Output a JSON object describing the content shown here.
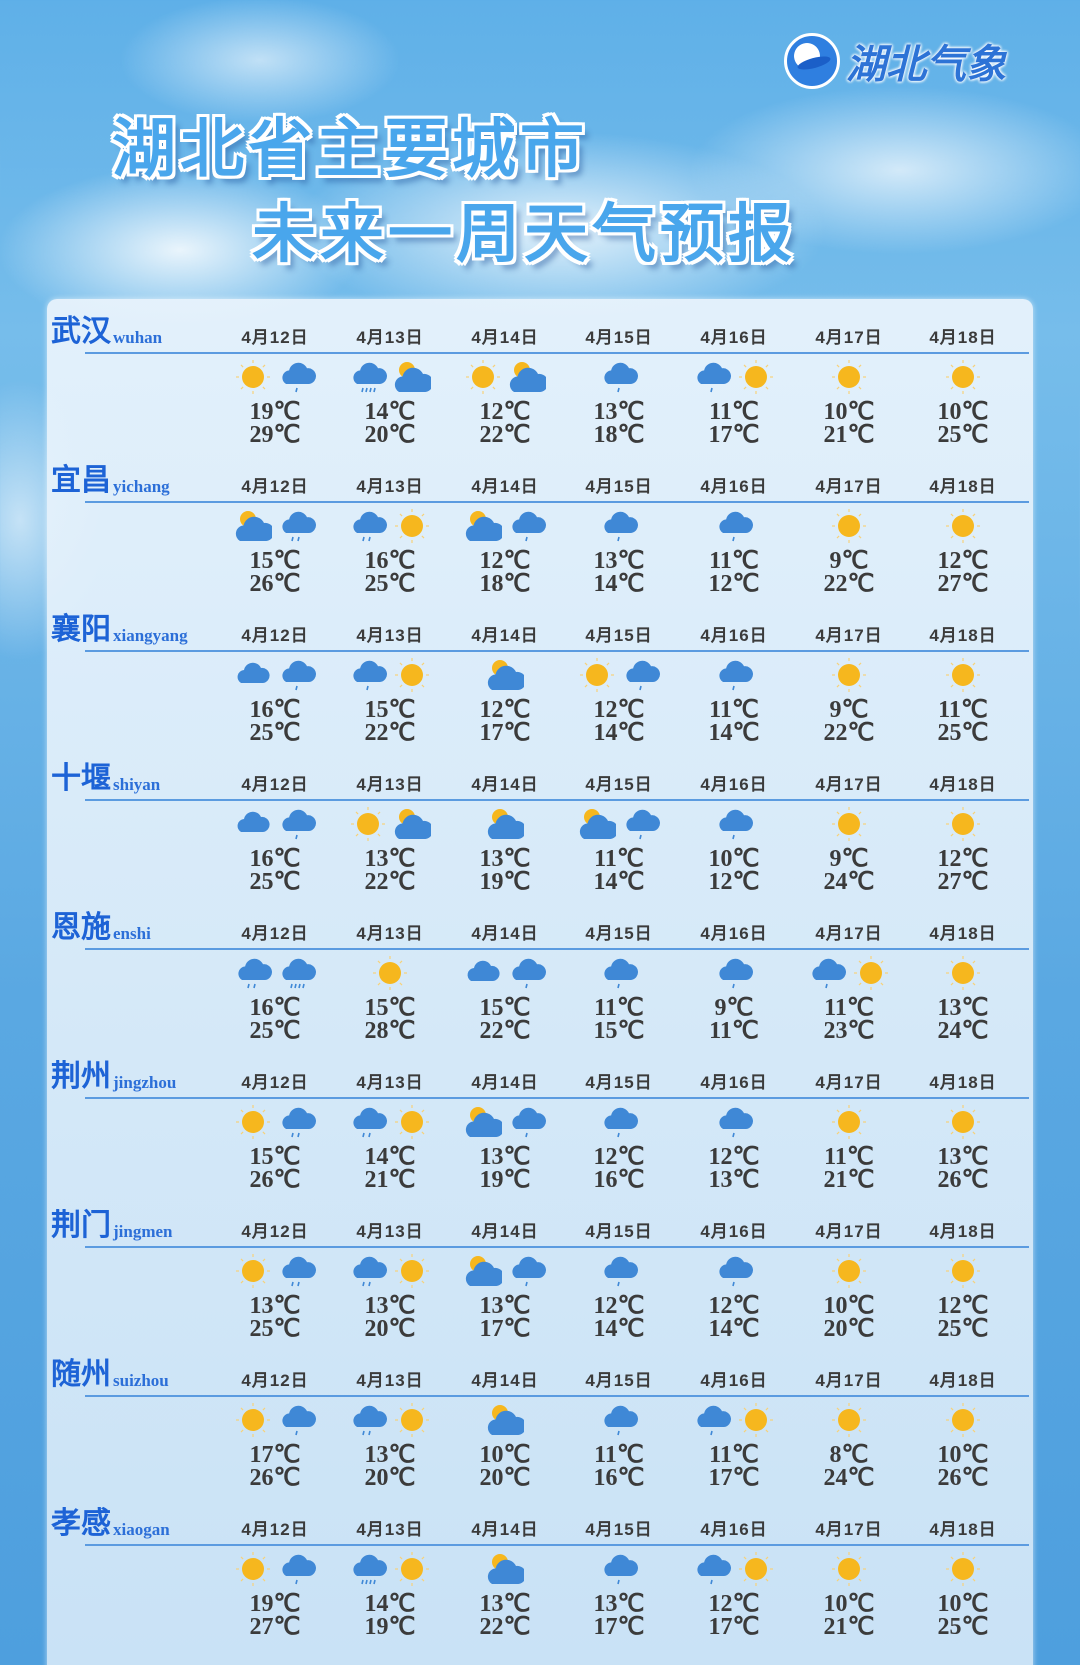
{
  "logo": {
    "text": "湖北气象"
  },
  "title": {
    "line1": "湖北省主要城市",
    "line2": "未来一周天气预报"
  },
  "dates": [
    "4月12日",
    "4月13日",
    "4月14日",
    "4月15日",
    "4月16日",
    "4月17日",
    "4月18日"
  ],
  "colors": {
    "city_name": "#1d63d6",
    "title": "#49a6ec",
    "sun": "#f6b71e",
    "cloud": "#3f88d6",
    "text": "#3b3b3b"
  },
  "cities": [
    {
      "name": "武汉",
      "pinyin": "wuhan",
      "days": [
        {
          "icons": [
            "sunny",
            "light-rain"
          ],
          "low": "19℃",
          "high": "29℃"
        },
        {
          "icons": [
            "heavy-rain",
            "partly-cloudy"
          ],
          "low": "14℃",
          "high": "20℃"
        },
        {
          "icons": [
            "sunny",
            "partly-cloudy"
          ],
          "low": "12℃",
          "high": "22℃"
        },
        {
          "icons": [
            "light-rain"
          ],
          "low": "13℃",
          "high": "18℃"
        },
        {
          "icons": [
            "light-rain",
            "sunny"
          ],
          "low": "11℃",
          "high": "17℃"
        },
        {
          "icons": [
            "sunny"
          ],
          "low": "10℃",
          "high": "21℃"
        },
        {
          "icons": [
            "sunny"
          ],
          "low": "10℃",
          "high": "25℃"
        }
      ]
    },
    {
      "name": "宜昌",
      "pinyin": "yichang",
      "days": [
        {
          "icons": [
            "partly-cloudy",
            "moderate-rain"
          ],
          "low": "15℃",
          "high": "26℃"
        },
        {
          "icons": [
            "moderate-rain",
            "sunny"
          ],
          "low": "16℃",
          "high": "25℃"
        },
        {
          "icons": [
            "partly-cloudy",
            "light-rain"
          ],
          "low": "12℃",
          "high": "18℃"
        },
        {
          "icons": [
            "light-rain"
          ],
          "low": "13℃",
          "high": "14℃"
        },
        {
          "icons": [
            "light-rain"
          ],
          "low": "11℃",
          "high": "12℃"
        },
        {
          "icons": [
            "sunny"
          ],
          "low": "9℃",
          "high": "22℃"
        },
        {
          "icons": [
            "sunny"
          ],
          "low": "12℃",
          "high": "27℃"
        }
      ]
    },
    {
      "name": "襄阳",
      "pinyin": "xiangyang",
      "days": [
        {
          "icons": [
            "cloudy",
            "light-rain"
          ],
          "low": "16℃",
          "high": "25℃"
        },
        {
          "icons": [
            "light-rain",
            "sunny"
          ],
          "low": "15℃",
          "high": "22℃"
        },
        {
          "icons": [
            "partly-cloudy"
          ],
          "low": "12℃",
          "high": "17℃"
        },
        {
          "icons": [
            "sunny",
            "light-rain"
          ],
          "low": "12℃",
          "high": "14℃"
        },
        {
          "icons": [
            "light-rain"
          ],
          "low": "11℃",
          "high": "14℃"
        },
        {
          "icons": [
            "sunny"
          ],
          "low": "9℃",
          "high": "22℃"
        },
        {
          "icons": [
            "sunny"
          ],
          "low": "11℃",
          "high": "25℃"
        }
      ]
    },
    {
      "name": "十堰",
      "pinyin": "shiyan",
      "days": [
        {
          "icons": [
            "cloudy",
            "light-rain"
          ],
          "low": "16℃",
          "high": "25℃"
        },
        {
          "icons": [
            "sunny",
            "partly-cloudy"
          ],
          "low": "13℃",
          "high": "22℃"
        },
        {
          "icons": [
            "partly-cloudy"
          ],
          "low": "13℃",
          "high": "19℃"
        },
        {
          "icons": [
            "partly-cloudy",
            "light-rain"
          ],
          "low": "11℃",
          "high": "14℃"
        },
        {
          "icons": [
            "light-rain"
          ],
          "low": "10℃",
          "high": "12℃"
        },
        {
          "icons": [
            "sunny"
          ],
          "low": "9℃",
          "high": "24℃"
        },
        {
          "icons": [
            "sunny"
          ],
          "low": "12℃",
          "high": "27℃"
        }
      ]
    },
    {
      "name": "恩施",
      "pinyin": "enshi",
      "days": [
        {
          "icons": [
            "moderate-rain",
            "heavy-rain"
          ],
          "low": "16℃",
          "high": "25℃"
        },
        {
          "icons": [
            "sunny"
          ],
          "low": "15℃",
          "high": "28℃"
        },
        {
          "icons": [
            "cloudy",
            "light-rain"
          ],
          "low": "15℃",
          "high": "22℃"
        },
        {
          "icons": [
            "light-rain"
          ],
          "low": "11℃",
          "high": "15℃"
        },
        {
          "icons": [
            "light-rain"
          ],
          "low": "9℃",
          "high": "11℃"
        },
        {
          "icons": [
            "light-rain",
            "sunny"
          ],
          "low": "11℃",
          "high": "23℃"
        },
        {
          "icons": [
            "sunny"
          ],
          "low": "13℃",
          "high": "24℃"
        }
      ]
    },
    {
      "name": "荆州",
      "pinyin": "jingzhou",
      "days": [
        {
          "icons": [
            "sunny",
            "moderate-rain"
          ],
          "low": "15℃",
          "high": "26℃"
        },
        {
          "icons": [
            "moderate-rain",
            "sunny"
          ],
          "low": "14℃",
          "high": "21℃"
        },
        {
          "icons": [
            "partly-cloudy",
            "light-rain"
          ],
          "low": "13℃",
          "high": "19℃"
        },
        {
          "icons": [
            "light-rain"
          ],
          "low": "12℃",
          "high": "16℃"
        },
        {
          "icons": [
            "light-rain"
          ],
          "low": "12℃",
          "high": "13℃"
        },
        {
          "icons": [
            "sunny"
          ],
          "low": "11℃",
          "high": "21℃"
        },
        {
          "icons": [
            "sunny"
          ],
          "low": "13℃",
          "high": "26℃"
        }
      ]
    },
    {
      "name": "荆门",
      "pinyin": "jingmen",
      "days": [
        {
          "icons": [
            "sunny",
            "moderate-rain"
          ],
          "low": "13℃",
          "high": "25℃"
        },
        {
          "icons": [
            "moderate-rain",
            "sunny"
          ],
          "low": "13℃",
          "high": "20℃"
        },
        {
          "icons": [
            "partly-cloudy",
            "light-rain"
          ],
          "low": "13℃",
          "high": "17℃"
        },
        {
          "icons": [
            "light-rain"
          ],
          "low": "12℃",
          "high": "14℃"
        },
        {
          "icons": [
            "light-rain"
          ],
          "low": "12℃",
          "high": "14℃"
        },
        {
          "icons": [
            "sunny"
          ],
          "low": "10℃",
          "high": "20℃"
        },
        {
          "icons": [
            "sunny"
          ],
          "low": "12℃",
          "high": "25℃"
        }
      ]
    },
    {
      "name": "随州",
      "pinyin": "suizhou",
      "days": [
        {
          "icons": [
            "sunny",
            "light-rain"
          ],
          "low": "17℃",
          "high": "26℃"
        },
        {
          "icons": [
            "moderate-rain",
            "sunny"
          ],
          "low": "13℃",
          "high": "20℃"
        },
        {
          "icons": [
            "partly-cloudy"
          ],
          "low": "10℃",
          "high": "20℃"
        },
        {
          "icons": [
            "light-rain"
          ],
          "low": "11℃",
          "high": "16℃"
        },
        {
          "icons": [
            "light-rain",
            "sunny"
          ],
          "low": "11℃",
          "high": "17℃"
        },
        {
          "icons": [
            "sunny"
          ],
          "low": "8℃",
          "high": "24℃"
        },
        {
          "icons": [
            "sunny"
          ],
          "low": "10℃",
          "high": "26℃"
        }
      ]
    },
    {
      "name": "孝感",
      "pinyin": "xiaogan",
      "days": [
        {
          "icons": [
            "sunny",
            "light-rain"
          ],
          "low": "19℃",
          "high": "27℃"
        },
        {
          "icons": [
            "heavy-rain",
            "sunny"
          ],
          "low": "14℃",
          "high": "19℃"
        },
        {
          "icons": [
            "partly-cloudy"
          ],
          "low": "13℃",
          "high": "22℃"
        },
        {
          "icons": [
            "light-rain"
          ],
          "low": "13℃",
          "high": "17℃"
        },
        {
          "icons": [
            "light-rain",
            "sunny"
          ],
          "low": "12℃",
          "high": "17℃"
        },
        {
          "icons": [
            "sunny"
          ],
          "low": "10℃",
          "high": "21℃"
        },
        {
          "icons": [
            "sunny"
          ],
          "low": "10℃",
          "high": "25℃"
        }
      ]
    }
  ]
}
